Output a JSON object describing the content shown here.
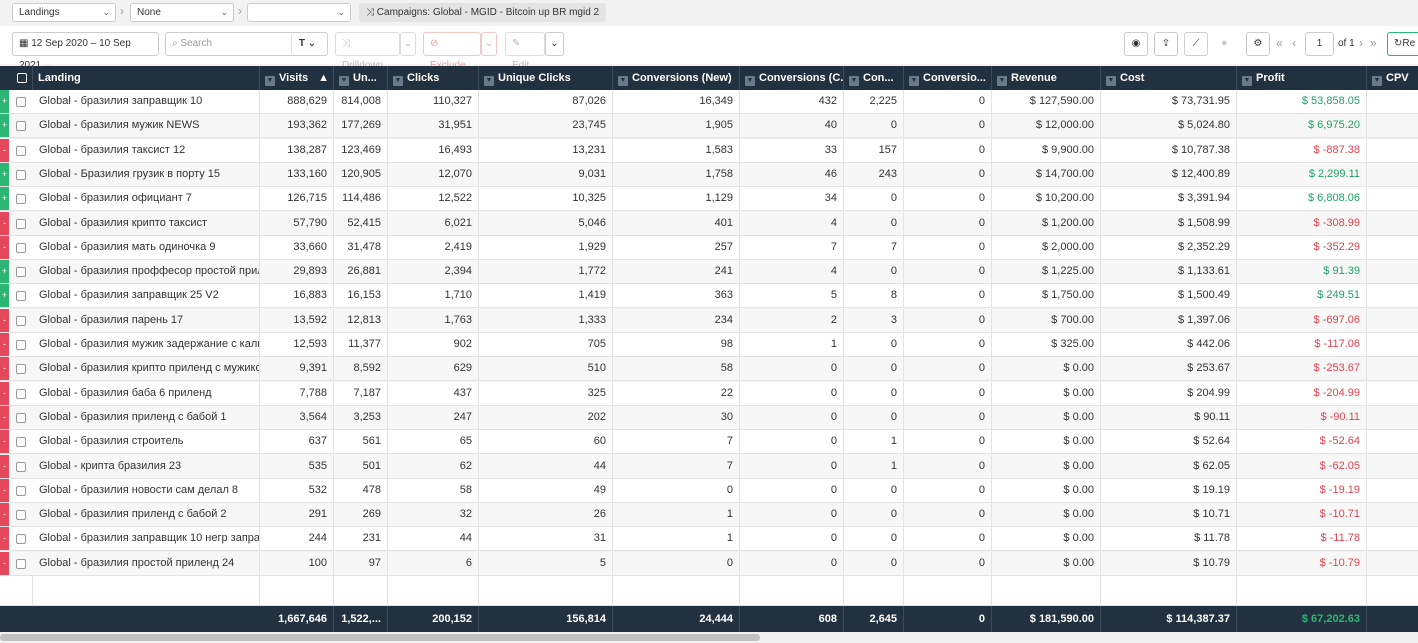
{
  "toolbar_top": {
    "grouping1": "Landings",
    "grouping2": "None",
    "grouping3": "",
    "crumb_label": "Campaigns:",
    "crumb_value": "Global - MGID - Bitcoin up BR mgid 2"
  },
  "toolbar": {
    "date_range": "12 Sep 2020 – 10 Sep 2021",
    "search_placeholder": "Search",
    "drilldown": "Drilldown",
    "exclude": "Exclude",
    "edit": "Edit",
    "page": "1",
    "of_pages": "of 1",
    "refresh": "Re"
  },
  "columns": [
    "Landing",
    "Visits",
    "Un...",
    "Clicks",
    "Unique Clicks",
    "Conversions (New)",
    "Conversions (C...",
    "Con...",
    "Conversio...",
    "Revenue",
    "Cost",
    "Profit",
    "CPV"
  ],
  "rows": [
    {
      "s": "+",
      "landing": "Global - бразилия заправщик 10",
      "visits": "888,629",
      "uniq": "814,008",
      "clicks": "110,327",
      "uclicks": "87,026",
      "conv_new": "16,349",
      "conv_c": "432",
      "con": "2,225",
      "conv2": "0",
      "revenue": "$ 127,590.00",
      "cost": "$ 73,731.95",
      "profit": "$ 53,858.05",
      "pc": "green"
    },
    {
      "s": "+",
      "landing": "Global - бразилия мужик NEWS",
      "visits": "193,362",
      "uniq": "177,269",
      "clicks": "31,951",
      "uclicks": "23,745",
      "conv_new": "1,905",
      "conv_c": "40",
      "con": "0",
      "conv2": "0",
      "revenue": "$ 12,000.00",
      "cost": "$ 5,024.80",
      "profit": "$ 6,975.20",
      "pc": "green"
    },
    {
      "s": "-",
      "landing": "Global - бразилия таксист 12",
      "visits": "138,287",
      "uniq": "123,469",
      "clicks": "16,493",
      "uclicks": "13,231",
      "conv_new": "1,583",
      "conv_c": "33",
      "con": "157",
      "conv2": "0",
      "revenue": "$ 9,900.00",
      "cost": "$ 10,787.38",
      "profit": "$ -887.38",
      "pc": "red"
    },
    {
      "s": "+",
      "landing": "Global - Бразилия грузик в порту 15",
      "visits": "133,160",
      "uniq": "120,905",
      "clicks": "12,070",
      "uclicks": "9,031",
      "conv_new": "1,758",
      "conv_c": "46",
      "con": "243",
      "conv2": "0",
      "revenue": "$ 14,700.00",
      "cost": "$ 12,400.89",
      "profit": "$ 2,299.11",
      "pc": "green"
    },
    {
      "s": "+",
      "landing": "Global - бразилия официант 7",
      "visits": "126,715",
      "uniq": "114,486",
      "clicks": "12,522",
      "uclicks": "10,325",
      "conv_new": "1,129",
      "conv_c": "34",
      "con": "0",
      "conv2": "0",
      "revenue": "$ 10,200.00",
      "cost": "$ 3,391.94",
      "profit": "$ 6,808.06",
      "pc": "green"
    },
    {
      "s": "-",
      "landing": "Global - бразилия крипто таксист",
      "visits": "57,790",
      "uniq": "52,415",
      "clicks": "6,021",
      "uclicks": "5,046",
      "conv_new": "401",
      "conv_c": "4",
      "con": "0",
      "conv2": "0",
      "revenue": "$ 1,200.00",
      "cost": "$ 1,508.99",
      "profit": "$ -308.99",
      "pc": "red"
    },
    {
      "s": "-",
      "landing": "Global - бразилия мать одиночка 9",
      "visits": "33,660",
      "uniq": "31,478",
      "clicks": "2,419",
      "uclicks": "1,929",
      "conv_new": "257",
      "conv_c": "7",
      "con": "7",
      "conv2": "0",
      "revenue": "$ 2,000.00",
      "cost": "$ 2,352.29",
      "profit": "$ -352.29",
      "pc": "red"
    },
    {
      "s": "+",
      "landing": "Global - бразилия проффесор простой прилен...",
      "visits": "29,893",
      "uniq": "26,881",
      "clicks": "2,394",
      "uclicks": "1,772",
      "conv_new": "241",
      "conv_c": "4",
      "con": "0",
      "conv2": "0",
      "revenue": "$ 1,225.00",
      "cost": "$ 1,133.61",
      "profit": "$ 91.39",
      "pc": "green"
    },
    {
      "s": "+",
      "landing": "Global - бразилия заправщик 25 V2",
      "visits": "16,883",
      "uniq": "16,153",
      "clicks": "1,710",
      "uclicks": "1,419",
      "conv_new": "363",
      "conv_c": "5",
      "con": "8",
      "conv2": "0",
      "revenue": "$ 1,750.00",
      "cost": "$ 1,500.49",
      "profit": "$ 249.51",
      "pc": "green"
    },
    {
      "s": "-",
      "landing": "Global - бразилия парень 17",
      "visits": "13,592",
      "uniq": "12,813",
      "clicks": "1,763",
      "uclicks": "1,333",
      "conv_new": "234",
      "conv_c": "2",
      "con": "3",
      "conv2": "0",
      "revenue": "$ 700.00",
      "cost": "$ 1,397.06",
      "profit": "$ -697.06",
      "pc": "red"
    },
    {
      "s": "-",
      "landing": "Global - бразилия мужик задержание с кальку...",
      "visits": "12,593",
      "uniq": "11,377",
      "clicks": "902",
      "uclicks": "705",
      "conv_new": "98",
      "conv_c": "1",
      "con": "0",
      "conv2": "0",
      "revenue": "$ 325.00",
      "cost": "$ 442.06",
      "profit": "$ -117.06",
      "pc": "red"
    },
    {
      "s": "-",
      "landing": "Global - бразилия крипто приленд с мужиком ...",
      "visits": "9,391",
      "uniq": "8,592",
      "clicks": "629",
      "uclicks": "510",
      "conv_new": "58",
      "conv_c": "0",
      "con": "0",
      "conv2": "0",
      "revenue": "$ 0.00",
      "cost": "$ 253.67",
      "profit": "$ -253.67",
      "pc": "red"
    },
    {
      "s": "-",
      "landing": "Global - бразилия баба 6 приленд",
      "visits": "7,788",
      "uniq": "7,187",
      "clicks": "437",
      "uclicks": "325",
      "conv_new": "22",
      "conv_c": "0",
      "con": "0",
      "conv2": "0",
      "revenue": "$ 0.00",
      "cost": "$ 204.99",
      "profit": "$ -204.99",
      "pc": "red"
    },
    {
      "s": "-",
      "landing": "Global - бразилия приленд с бабой 1",
      "visits": "3,564",
      "uniq": "3,253",
      "clicks": "247",
      "uclicks": "202",
      "conv_new": "30",
      "conv_c": "0",
      "con": "0",
      "conv2": "0",
      "revenue": "$ 0.00",
      "cost": "$ 90.11",
      "profit": "$ -90.11",
      "pc": "red"
    },
    {
      "s": "-",
      "landing": "Global - бразилия строитель",
      "visits": "637",
      "uniq": "561",
      "clicks": "65",
      "uclicks": "60",
      "conv_new": "7",
      "conv_c": "0",
      "con": "1",
      "conv2": "0",
      "revenue": "$ 0.00",
      "cost": "$ 52.64",
      "profit": "$ -52.64",
      "pc": "red"
    },
    {
      "s": "-",
      "landing": "Global - крипта бразилия 23",
      "visits": "535",
      "uniq": "501",
      "clicks": "62",
      "uclicks": "44",
      "conv_new": "7",
      "conv_c": "0",
      "con": "1",
      "conv2": "0",
      "revenue": "$ 0.00",
      "cost": "$ 62.05",
      "profit": "$ -62.05",
      "pc": "red"
    },
    {
      "s": "-",
      "landing": "Global - бразилия новости сам делал 8",
      "visits": "532",
      "uniq": "478",
      "clicks": "58",
      "uclicks": "49",
      "conv_new": "0",
      "conv_c": "0",
      "con": "0",
      "conv2": "0",
      "revenue": "$ 0.00",
      "cost": "$ 19.19",
      "profit": "$ -19.19",
      "pc": "red"
    },
    {
      "s": "-",
      "landing": "Global - бразилия приленд с бабой 2",
      "visits": "291",
      "uniq": "269",
      "clicks": "32",
      "uclicks": "26",
      "conv_new": "1",
      "conv_c": "0",
      "con": "0",
      "conv2": "0",
      "revenue": "$ 0.00",
      "cost": "$ 10.71",
      "profit": "$ -10.71",
      "pc": "red"
    },
    {
      "s": "-",
      "landing": "Global - бразилия заправщик 10 негр заправщик",
      "visits": "244",
      "uniq": "231",
      "clicks": "44",
      "uclicks": "31",
      "conv_new": "1",
      "conv_c": "0",
      "con": "0",
      "conv2": "0",
      "revenue": "$ 0.00",
      "cost": "$ 11.78",
      "profit": "$ -11.78",
      "pc": "red"
    },
    {
      "s": "-",
      "landing": "Global - бразилия простой приленд 24",
      "visits": "100",
      "uniq": "97",
      "clicks": "6",
      "uclicks": "5",
      "conv_new": "0",
      "conv_c": "0",
      "con": "0",
      "conv2": "0",
      "revenue": "$ 0.00",
      "cost": "$ 10.79",
      "profit": "$ -10.79",
      "pc": "red"
    }
  ],
  "totals": {
    "visits": "1,667,646",
    "uniq": "1,522,...",
    "clicks": "200,152",
    "uclicks": "156,814",
    "conv_new": "24,444",
    "conv_c": "608",
    "con": "2,645",
    "conv2": "0",
    "revenue": "$ 181,590.00",
    "cost": "$ 114,387.37",
    "profit": "$ 67,202.63"
  },
  "colors": {
    "header_bg": "#22313f",
    "positive": "#2bb673",
    "negative": "#e5485a"
  }
}
